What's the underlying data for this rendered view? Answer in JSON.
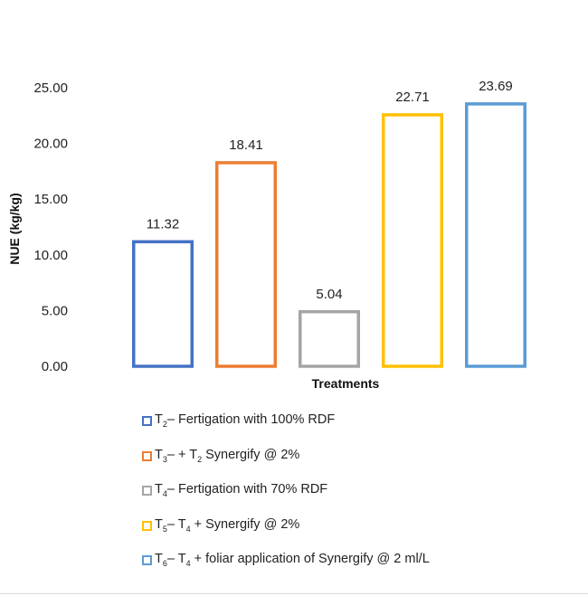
{
  "chart_data": {
    "type": "bar",
    "title": "",
    "xlabel": "Treatments",
    "ylabel": "NUE (kg/kg)",
    "ylim": [
      0,
      25
    ],
    "yticks": [
      "0.00",
      "5.00",
      "10.00",
      "15.00",
      "20.00",
      "25.00"
    ],
    "categories": [
      "T2",
      "T3",
      "T4",
      "T5",
      "T6"
    ],
    "values": [
      11.32,
      18.41,
      5.04,
      22.71,
      23.69
    ],
    "value_labels": [
      "11.32",
      "18.41",
      "5.04",
      "22.71",
      "23.69"
    ],
    "colors": [
      "#4472C4",
      "#ED7D31",
      "#A5A5A5",
      "#FFC000",
      "#5B9BD5"
    ],
    "bar_style": "outlined",
    "grid": false,
    "legend_position": "bottom"
  },
  "legend": [
    {
      "prefix": "T",
      "sub": "2",
      "text": "– Fertigation with 100% RDF",
      "color": "#4472C4"
    },
    {
      "prefix": "T",
      "sub": "3",
      "text": "– + T",
      "sub2": "2",
      "text2": " Synergify @ 2%",
      "color": "#ED7D31"
    },
    {
      "prefix": "T",
      "sub": "4",
      "text": "– Fertigation with 70% RDF",
      "color": "#A5A5A5"
    },
    {
      "prefix": "T",
      "sub": "5",
      "text": "– T",
      "sub2": "4",
      "text2": " + Synergify @ 2%",
      "color": "#FFC000"
    },
    {
      "prefix": "T",
      "sub": "6",
      "text": "– T",
      "sub2": "4",
      "text2": " + foliar application of Synergify @ 2 ml/L",
      "color": "#5B9BD5"
    }
  ]
}
